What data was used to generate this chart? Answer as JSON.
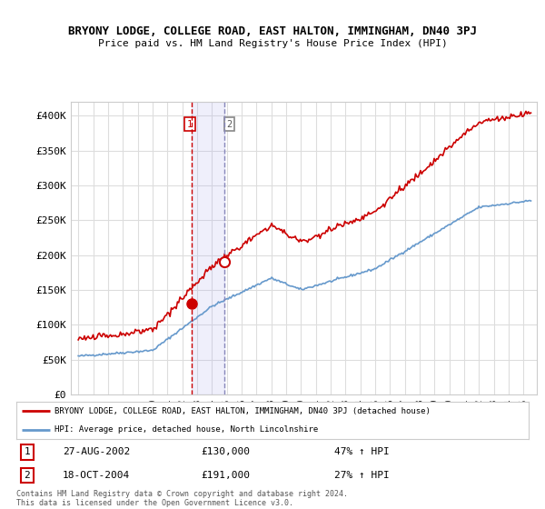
{
  "title": "BRYONY LODGE, COLLEGE ROAD, EAST HALTON, IMMINGHAM, DN40 3PJ",
  "subtitle": "Price paid vs. HM Land Registry's House Price Index (HPI)",
  "legend_line1": "BRYONY LODGE, COLLEGE ROAD, EAST HALTON, IMMINGHAM, DN40 3PJ (detached house)",
  "legend_line2": "HPI: Average price, detached house, North Lincolnshire",
  "transaction1_date": "27-AUG-2002",
  "transaction1_price": 130000,
  "transaction1_hpi": "47% ↑ HPI",
  "transaction2_date": "18-OCT-2004",
  "transaction2_price": 191000,
  "transaction2_hpi": "27% ↑ HPI",
  "footer": "Contains HM Land Registry data © Crown copyright and database right 2024.\nThis data is licensed under the Open Government Licence v3.0.",
  "red_color": "#cc0000",
  "blue_color": "#6699cc",
  "background_color": "#ffffff",
  "grid_color": "#dddddd",
  "ylim": [
    0,
    420000
  ],
  "yticks": [
    0,
    50000,
    100000,
    150000,
    200000,
    250000,
    300000,
    350000,
    400000
  ],
  "ytick_labels": [
    "£0",
    "£50K",
    "£100K",
    "£150K",
    "£200K",
    "£250K",
    "£300K",
    "£350K",
    "£400K"
  ]
}
